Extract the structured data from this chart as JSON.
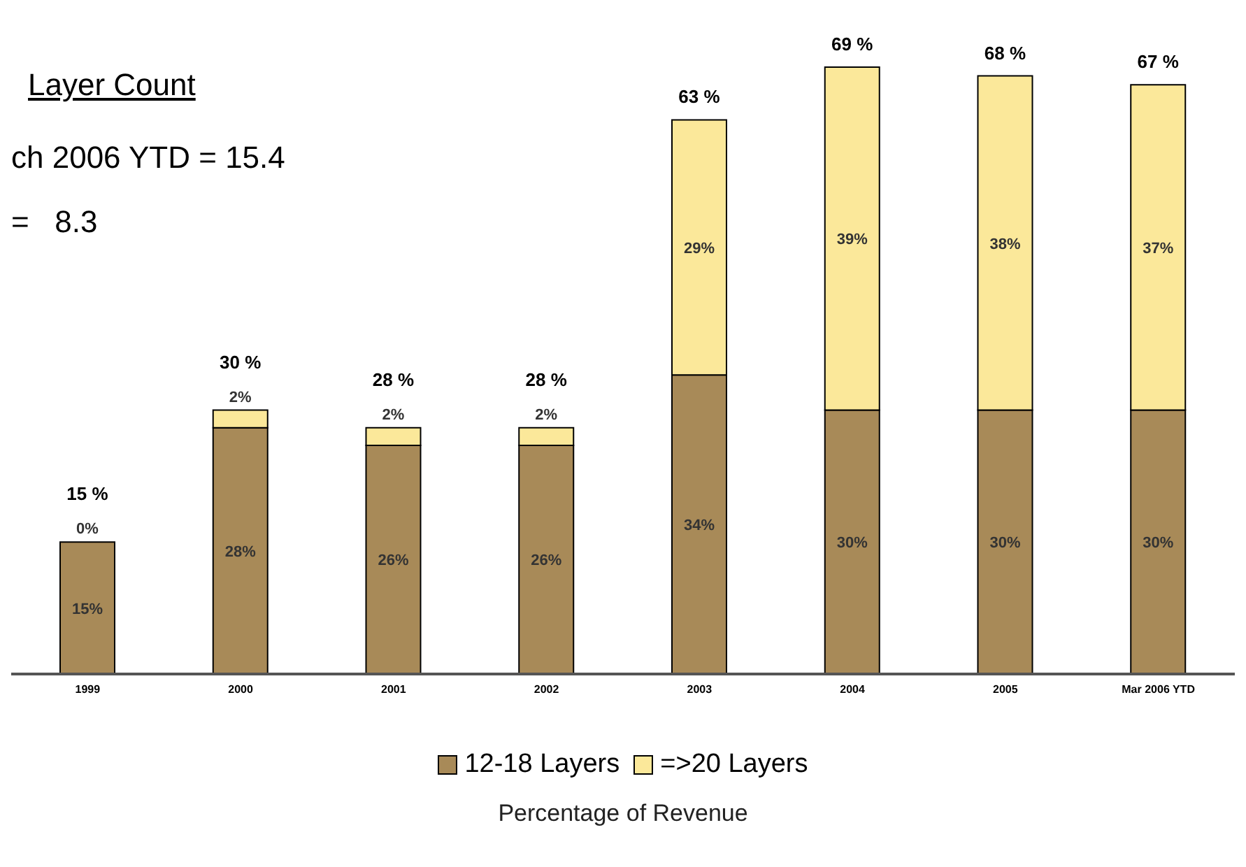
{
  "chart_data": {
    "type": "bar",
    "title": "Layer Count",
    "annotations": [
      "ch 2006 YTD = 15.4",
      "=   8.3"
    ],
    "xlabel": "Percentage of Revenue",
    "categories": [
      "1999",
      "2000",
      "2001",
      "2002",
      "2003",
      "2004",
      "2005",
      "Mar 2006 YTD"
    ],
    "stacked": true,
    "legend": "bottom",
    "grid": false,
    "totals": [
      "15 %",
      "30 %",
      "28 %",
      "28 %",
      "63 %",
      "69 %",
      "68 %",
      "67 %"
    ],
    "series": [
      {
        "name": "12-18 Layers",
        "color": "#a88a58",
        "values": [
          15,
          28,
          26,
          26,
          34,
          30,
          30,
          30
        ],
        "value_labels": [
          "15%",
          "28%",
          "26%",
          "26%",
          "34%",
          "30%",
          "30%",
          "30%"
        ]
      },
      {
        "name": "=>20 Layers",
        "color": "#fbe89a",
        "values": [
          0,
          2,
          2,
          2,
          29,
          39,
          38,
          37
        ],
        "value_labels": [
          "0%",
          "2%",
          "2%",
          "2%",
          "29%",
          "39%",
          "38%",
          "37%"
        ]
      }
    ]
  }
}
